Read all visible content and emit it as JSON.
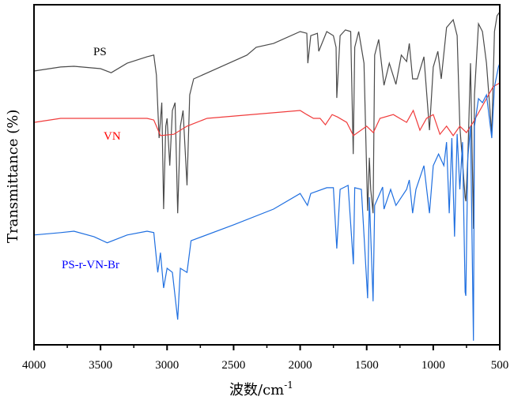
{
  "chart_data": {
    "type": "line",
    "title": "",
    "xlabel": "波数/cm",
    "xlabel_superscript": "-1",
    "ylabel": "Transmittance (%)",
    "xlim": [
      4000,
      500
    ],
    "ylim": [
      0,
      100
    ],
    "x_reversed": true,
    "grid": false,
    "x_ticks": [
      "4000",
      "3500",
      "3000",
      "2500",
      "2000",
      "1500",
      "1000",
      "500"
    ],
    "x_tick_values": [
      4000,
      3500,
      3000,
      2500,
      2000,
      1500,
      1000,
      500
    ],
    "series": [
      {
        "name": "PS",
        "color": "#4a4a4a",
        "label_color": "#000000",
        "points": [
          [
            4000,
            80.5
          ],
          [
            3800,
            81.7
          ],
          [
            3700,
            81.9
          ],
          [
            3500,
            81.2
          ],
          [
            3420,
            80
          ],
          [
            3300,
            82.8
          ],
          [
            3150,
            84.7
          ],
          [
            3100,
            85.2
          ],
          [
            3080,
            79.3
          ],
          [
            3060,
            60.8
          ],
          [
            3040,
            71.2
          ],
          [
            3026,
            39.9
          ],
          [
            3010,
            64.3
          ],
          [
            3000,
            66.6
          ],
          [
            2980,
            52.7
          ],
          [
            2960,
            68.9
          ],
          [
            2940,
            71.2
          ],
          [
            2920,
            38.7
          ],
          [
            2900,
            64.3
          ],
          [
            2880,
            68.9
          ],
          [
            2850,
            46.9
          ],
          [
            2830,
            73.5
          ],
          [
            2800,
            78.2
          ],
          [
            2600,
            81.7
          ],
          [
            2400,
            85.2
          ],
          [
            2330,
            87.5
          ],
          [
            2200,
            88.6
          ],
          [
            2000,
            92.1
          ],
          [
            1950,
            91.6
          ],
          [
            1942,
            82.8
          ],
          [
            1920,
            90.9
          ],
          [
            1870,
            91.6
          ],
          [
            1860,
            86.3
          ],
          [
            1800,
            92.1
          ],
          [
            1750,
            90.9
          ],
          [
            1730,
            87.5
          ],
          [
            1725,
            72.6
          ],
          [
            1700,
            90.9
          ],
          [
            1660,
            92.6
          ],
          [
            1620,
            92.1
          ],
          [
            1601,
            56.1
          ],
          [
            1590,
            87.5
          ],
          [
            1560,
            92.1
          ],
          [
            1520,
            82.8
          ],
          [
            1493,
            39.4
          ],
          [
            1480,
            55
          ],
          [
            1470,
            45.7
          ],
          [
            1452,
            38.7
          ],
          [
            1440,
            85.2
          ],
          [
            1410,
            89.8
          ],
          [
            1370,
            76.3
          ],
          [
            1330,
            82.8
          ],
          [
            1280,
            76.6
          ],
          [
            1240,
            85.2
          ],
          [
            1200,
            83.3
          ],
          [
            1180,
            88.6
          ],
          [
            1155,
            78.2
          ],
          [
            1120,
            78.2
          ],
          [
            1070,
            84.7
          ],
          [
            1028,
            63.1
          ],
          [
            1000,
            81.7
          ],
          [
            965,
            86.3
          ],
          [
            940,
            78.2
          ],
          [
            900,
            93.3
          ],
          [
            850,
            95.6
          ],
          [
            820,
            90.9
          ],
          [
            800,
            64.3
          ],
          [
            760,
            43.4
          ],
          [
            755,
            42.2
          ],
          [
            740,
            55
          ],
          [
            720,
            82.8
          ],
          [
            697,
            34.1
          ],
          [
            690,
            73.5
          ],
          [
            660,
            94.4
          ],
          [
            630,
            92.1
          ],
          [
            600,
            82.8
          ],
          [
            560,
            61.9
          ],
          [
            540,
            92.1
          ],
          [
            520,
            96.8
          ],
          [
            500,
            97.9
          ]
        ]
      },
      {
        "name": "VN",
        "color": "#f03c3c",
        "label_color": "#ff0000",
        "points": [
          [
            4000,
            65.4
          ],
          [
            3800,
            66.6
          ],
          [
            3150,
            66.6
          ],
          [
            3100,
            66.1
          ],
          [
            3050,
            61.5
          ],
          [
            2950,
            61.9
          ],
          [
            2850,
            64.3
          ],
          [
            2700,
            66.6
          ],
          [
            2000,
            68.9
          ],
          [
            1950,
            67.7
          ],
          [
            1900,
            66.6
          ],
          [
            1850,
            66.6
          ],
          [
            1810,
            64.7
          ],
          [
            1760,
            67.7
          ],
          [
            1720,
            67
          ],
          [
            1650,
            65.4
          ],
          [
            1600,
            61.5
          ],
          [
            1500,
            64.3
          ],
          [
            1450,
            62.4
          ],
          [
            1400,
            66.6
          ],
          [
            1300,
            67.7
          ],
          [
            1200,
            65.4
          ],
          [
            1150,
            68.9
          ],
          [
            1100,
            63.1
          ],
          [
            1050,
            66.6
          ],
          [
            1000,
            67.7
          ],
          [
            950,
            61.9
          ],
          [
            900,
            64.3
          ],
          [
            850,
            61.5
          ],
          [
            800,
            64.3
          ],
          [
            750,
            62.4
          ],
          [
            700,
            65.4
          ],
          [
            650,
            68.9
          ],
          [
            600,
            72.4
          ],
          [
            550,
            75.9
          ],
          [
            500,
            77
          ]
        ]
      },
      {
        "name": "PS-r-VN-Br",
        "color": "#1f6fe0",
        "label_color": "#0000ff",
        "points": [
          [
            4000,
            32.3
          ],
          [
            3800,
            33
          ],
          [
            3700,
            33.4
          ],
          [
            3550,
            31.8
          ],
          [
            3450,
            30
          ],
          [
            3300,
            32.3
          ],
          [
            3150,
            33.4
          ],
          [
            3100,
            33
          ],
          [
            3070,
            21.3
          ],
          [
            3050,
            27.1
          ],
          [
            3026,
            16.7
          ],
          [
            3000,
            22.5
          ],
          [
            2960,
            21.3
          ],
          [
            2920,
            7.4
          ],
          [
            2900,
            22.5
          ],
          [
            2850,
            21.3
          ],
          [
            2820,
            30.6
          ],
          [
            2500,
            35.3
          ],
          [
            2200,
            39.9
          ],
          [
            2000,
            44.5
          ],
          [
            1945,
            41
          ],
          [
            1920,
            44.5
          ],
          [
            1800,
            46.2
          ],
          [
            1750,
            46.2
          ],
          [
            1725,
            28.3
          ],
          [
            1700,
            45.7
          ],
          [
            1640,
            46.9
          ],
          [
            1600,
            23.7
          ],
          [
            1590,
            46.2
          ],
          [
            1540,
            45.7
          ],
          [
            1493,
            13.7
          ],
          [
            1480,
            43.4
          ],
          [
            1452,
            12.8
          ],
          [
            1440,
            41
          ],
          [
            1380,
            46.4
          ],
          [
            1370,
            39.9
          ],
          [
            1320,
            45.7
          ],
          [
            1280,
            41
          ],
          [
            1200,
            45.7
          ],
          [
            1180,
            48.5
          ],
          [
            1155,
            38.7
          ],
          [
            1130,
            45.7
          ],
          [
            1070,
            52.7
          ],
          [
            1028,
            38.7
          ],
          [
            1000,
            52.7
          ],
          [
            960,
            56.1
          ],
          [
            920,
            52.7
          ],
          [
            900,
            59.6
          ],
          [
            880,
            38.7
          ],
          [
            860,
            60.8
          ],
          [
            840,
            31.8
          ],
          [
            820,
            62
          ],
          [
            800,
            45.7
          ],
          [
            780,
            59.6
          ],
          [
            760,
            15.5
          ],
          [
            755,
            14.4
          ],
          [
            740,
            55
          ],
          [
            720,
            64.3
          ],
          [
            698,
            1.2
          ],
          [
            690,
            64.3
          ],
          [
            660,
            72.4
          ],
          [
            630,
            71.2
          ],
          [
            600,
            73.5
          ],
          [
            560,
            60.8
          ],
          [
            540,
            75.9
          ],
          [
            510,
            81.7
          ],
          [
            500,
            82.8
          ]
        ]
      }
    ]
  }
}
